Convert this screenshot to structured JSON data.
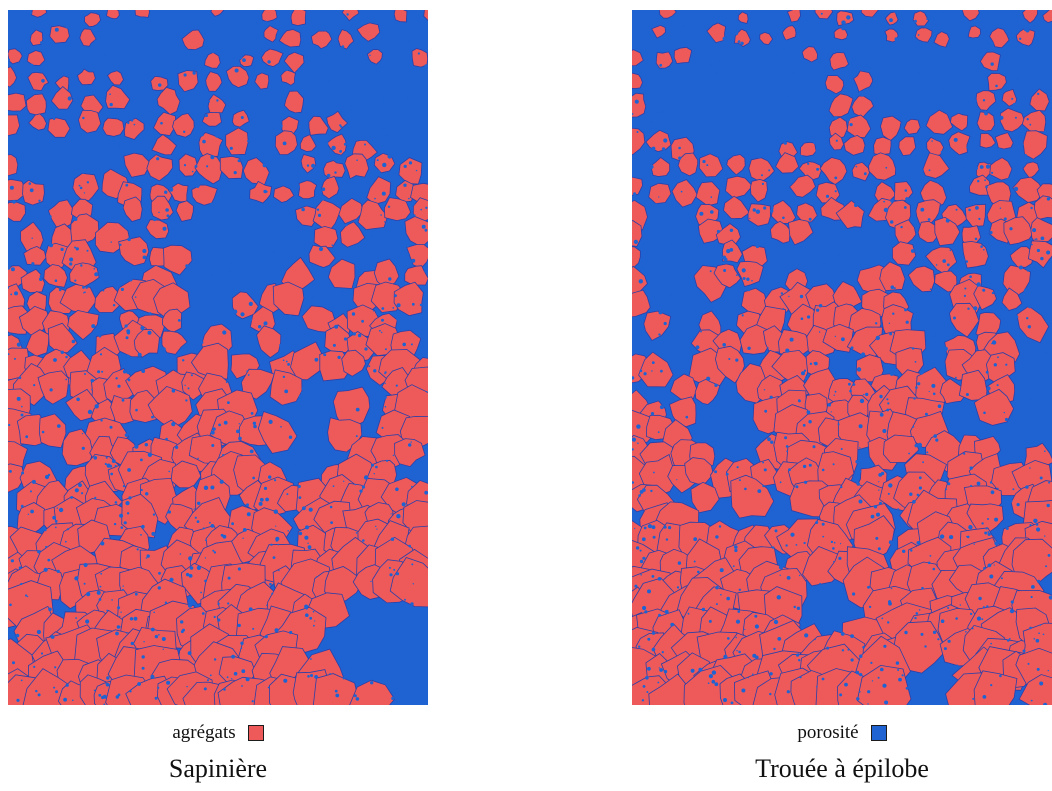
{
  "colors": {
    "aggregate": "#ee5a5a",
    "porosity": "#1f63d2",
    "outline": "#2a3fa8"
  },
  "panels": [
    {
      "caption": "Sapinière",
      "legend": {
        "label": "agrégats",
        "swatch_color": "#ee5a5a"
      }
    },
    {
      "caption": "Trouée à épilobe",
      "legend": {
        "label": "porosité",
        "swatch_color": "#1f63d2"
      }
    }
  ]
}
